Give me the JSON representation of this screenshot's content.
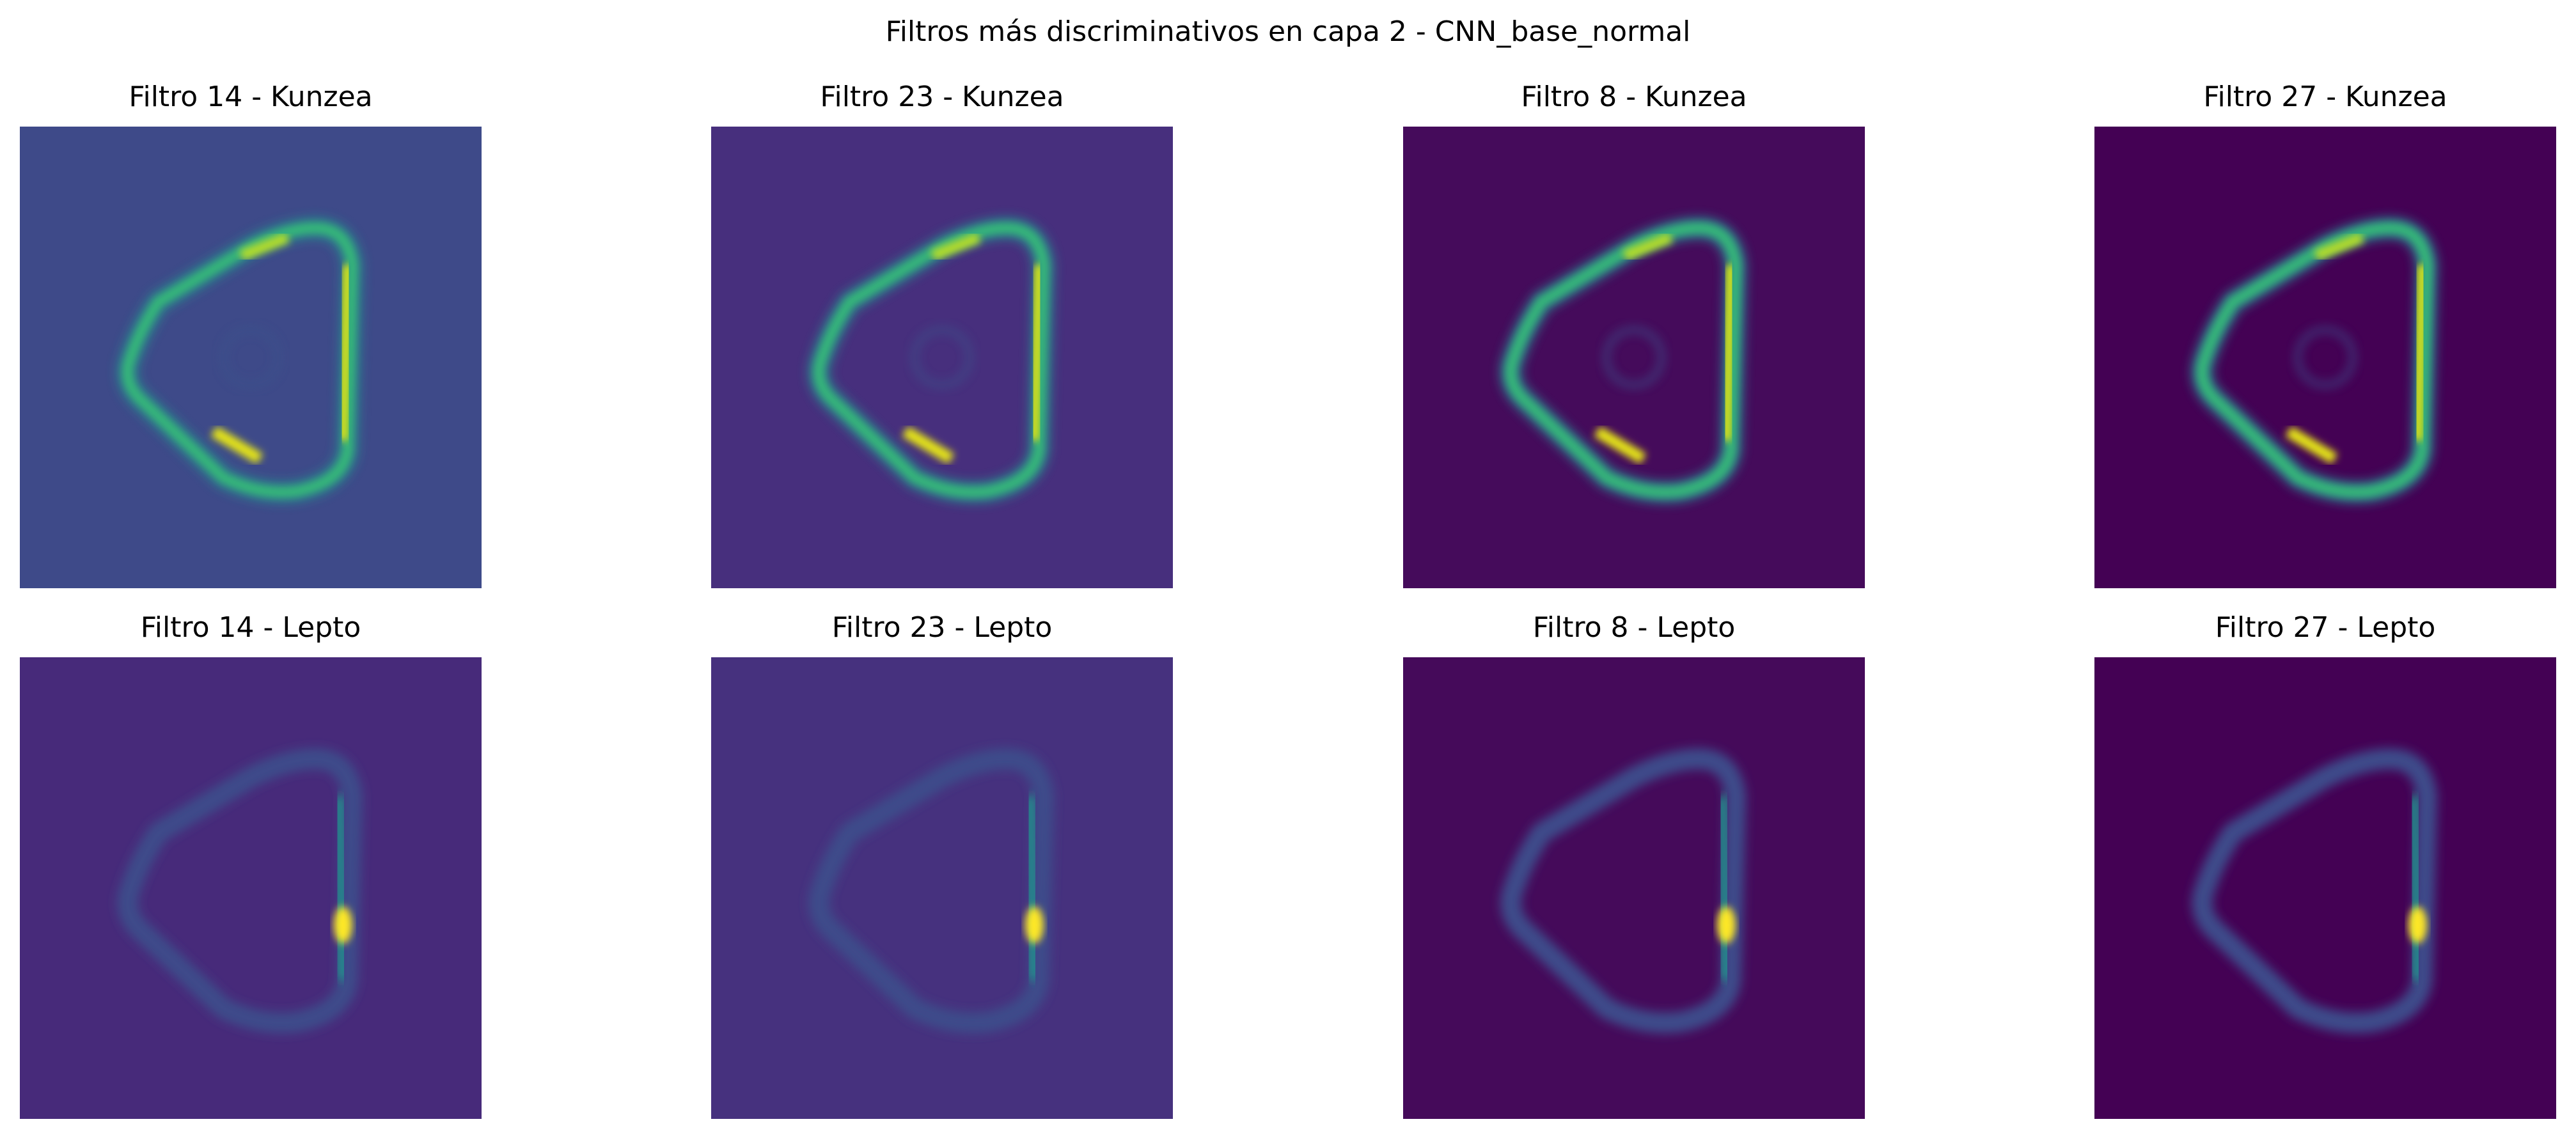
{
  "title": "Filtros más discriminativos en capa 2 - CNN_base_normal",
  "panels": [
    {
      "title": "Filtro 14 - Kunzea"
    },
    {
      "title": "Filtro 23 - Kunzea"
    },
    {
      "title": "Filtro 8 - Kunzea"
    },
    {
      "title": "Filtro 27 - Kunzea"
    },
    {
      "title": "Filtro 14 - Lepto"
    },
    {
      "title": "Filtro 23 - Lepto"
    },
    {
      "title": "Filtro 8 - Lepto"
    },
    {
      "title": "Filtro 27 - Lepto"
    }
  ]
}
